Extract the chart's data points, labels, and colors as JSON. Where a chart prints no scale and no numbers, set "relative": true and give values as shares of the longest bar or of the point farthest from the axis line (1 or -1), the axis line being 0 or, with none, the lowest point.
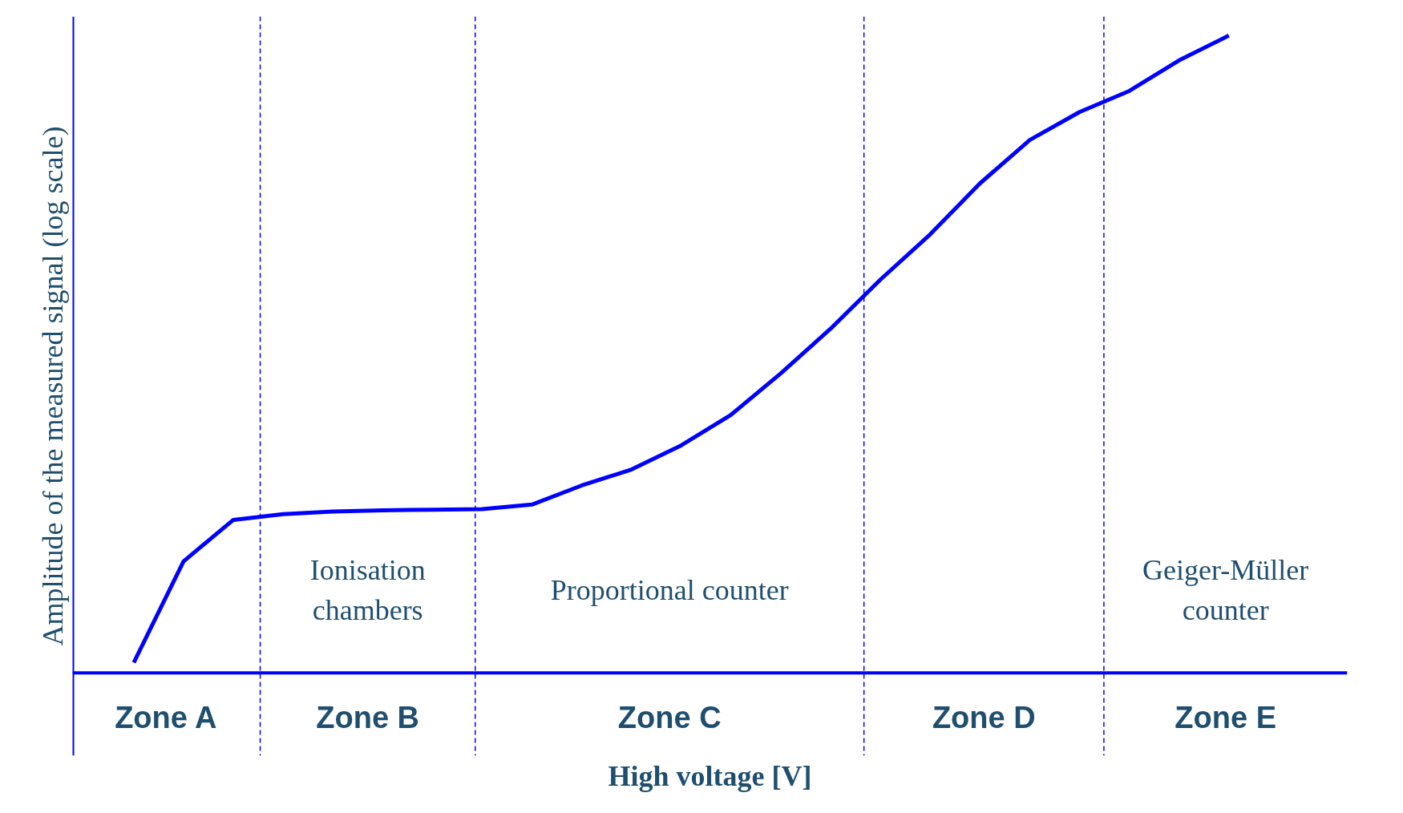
{
  "chart_data": {
    "type": "line",
    "relative": true,
    "xlabel": "High voltage [V]",
    "ylabel": "Amplitude of the measured signal (log scale)",
    "categories": [
      null,
      null,
      null,
      null,
      null,
      null,
      null,
      null,
      null,
      null,
      null,
      null,
      null,
      null,
      null,
      null,
      null,
      null,
      null,
      null,
      null,
      null,
      null
    ],
    "marker": "none",
    "line_style": "solid",
    "series": [
      {
        "color": "#0000ff",
        "values": [
          0.016,
          0.175,
          0.24,
          0.249,
          0.253,
          0.255,
          0.256,
          0.257,
          0.264,
          0.294,
          0.319,
          0.357,
          0.405,
          0.47,
          0.54,
          0.617,
          0.688,
          0.768,
          0.836,
          0.88,
          0.913,
          0.961,
          1.0
        ]
      }
    ],
    "annotations": [
      "Ionisation\nchambers",
      "Proportional counter",
      "Geiger-Müller\ncounter",
      "Zone A",
      "Zone B",
      "Zone C",
      "Zone D",
      "Zone E"
    ]
  }
}
